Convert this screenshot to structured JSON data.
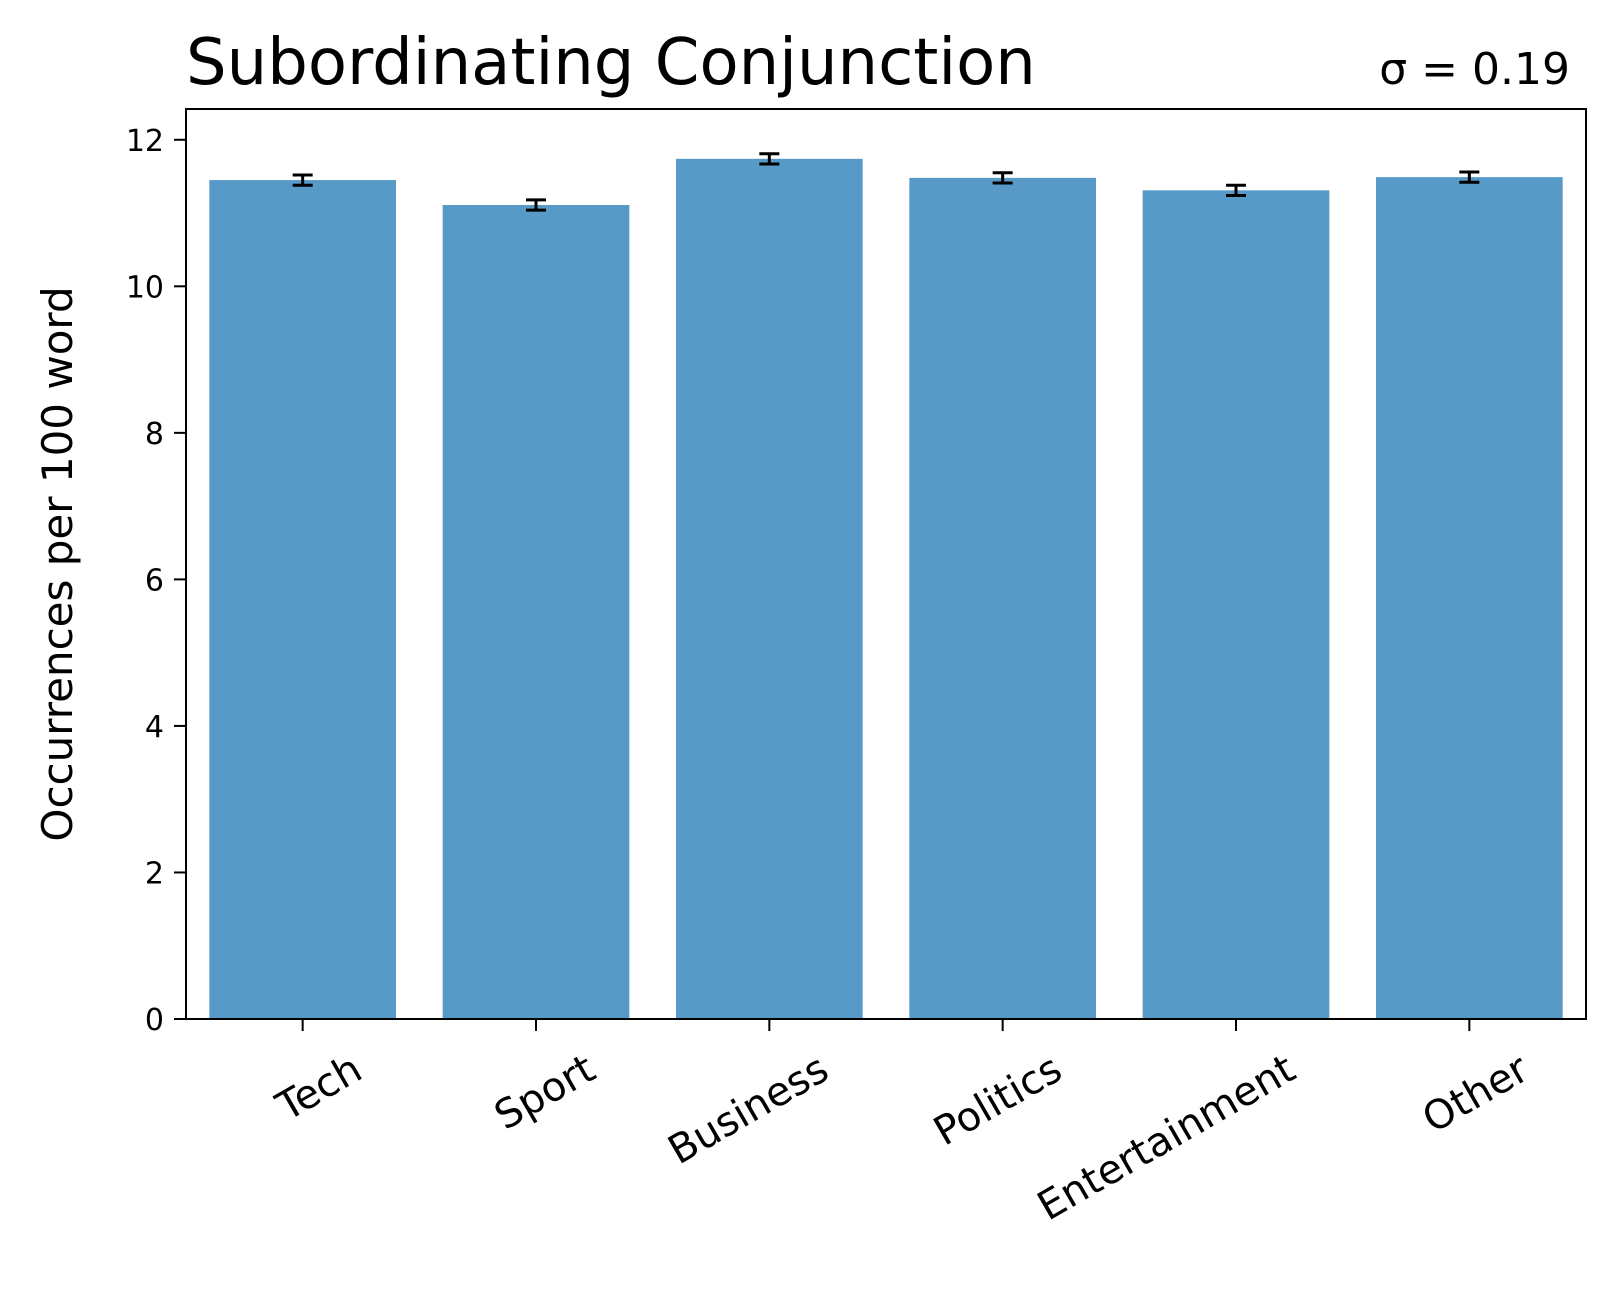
{
  "chart_data": {
    "type": "bar",
    "title": "Subordinating Conjunction",
    "annotation": "σ = 0.19",
    "xlabel": "",
    "ylabel": "Occurrences per 100 word",
    "categories": [
      "Tech",
      "Sport",
      "Business",
      "Politics",
      "Entertainment",
      "Other"
    ],
    "values": [
      11.45,
      11.11,
      11.74,
      11.48,
      11.31,
      11.49
    ],
    "error": [
      0.07,
      0.07,
      0.07,
      0.07,
      0.07,
      0.07
    ],
    "ylim": [
      0,
      12.42
    ],
    "yticks": [
      0,
      2,
      4,
      6,
      8,
      10,
      12
    ],
    "grid": false,
    "bar_color": "#5799c7",
    "error_color": "#000000"
  }
}
